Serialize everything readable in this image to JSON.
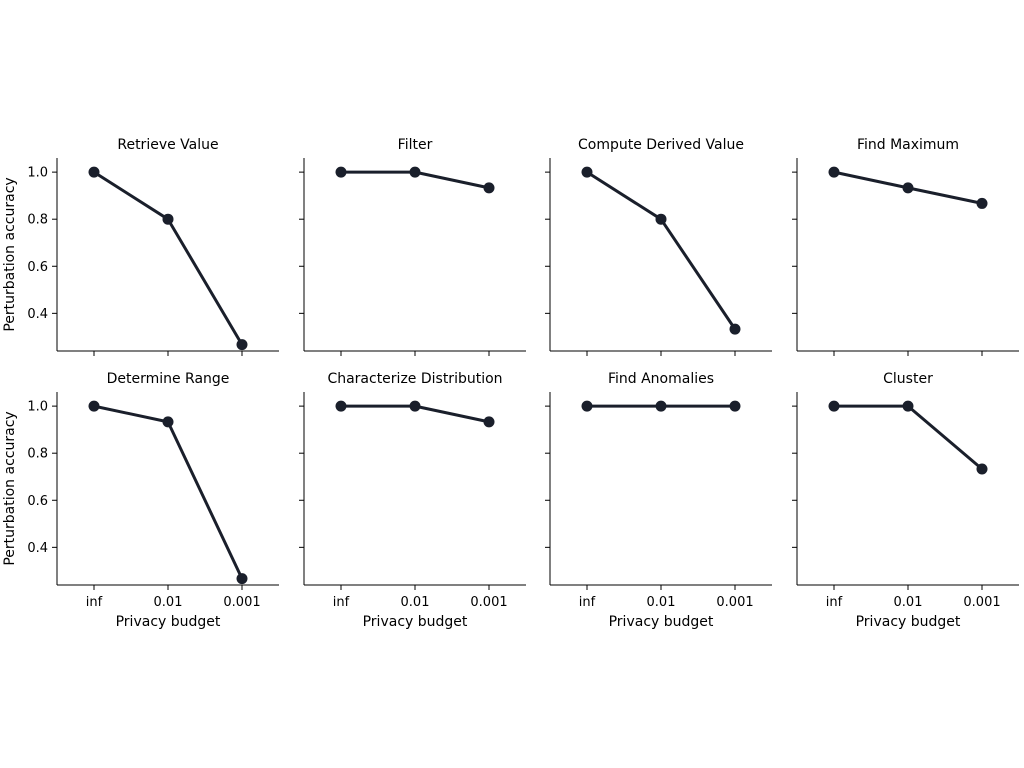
{
  "chart_data": {
    "type": "line",
    "layout": {
      "rows": 2,
      "cols": 4
    },
    "xlabel": "Privacy budget",
    "ylabel": "Perturbation accuracy",
    "x_categories": [
      "inf",
      "0.01",
      "0.001"
    ],
    "ylim": [
      0.24,
      1.06
    ],
    "yticks": [
      0.4,
      0.6,
      0.8,
      1.0
    ],
    "ytick_labels": [
      "0.4",
      "0.6",
      "0.8",
      "1.0"
    ],
    "grid": false,
    "sharey": true,
    "line_color": "#1a1f2b",
    "subplots": [
      {
        "title": "Retrieve Value",
        "values": [
          1.0,
          0.8,
          0.267
        ]
      },
      {
        "title": "Filter",
        "values": [
          1.0,
          1.0,
          0.933
        ]
      },
      {
        "title": "Compute Derived Value",
        "values": [
          1.0,
          0.8,
          0.333
        ]
      },
      {
        "title": "Find Maximum",
        "values": [
          1.0,
          0.933,
          0.867
        ]
      },
      {
        "title": "Determine Range",
        "values": [
          1.0,
          0.933,
          0.267
        ]
      },
      {
        "title": "Characterize Distribution",
        "values": [
          1.0,
          1.0,
          0.933
        ]
      },
      {
        "title": "Find Anomalies",
        "values": [
          1.0,
          1.0,
          1.0
        ]
      },
      {
        "title": "Cluster",
        "values": [
          1.0,
          1.0,
          0.733
        ]
      }
    ]
  }
}
